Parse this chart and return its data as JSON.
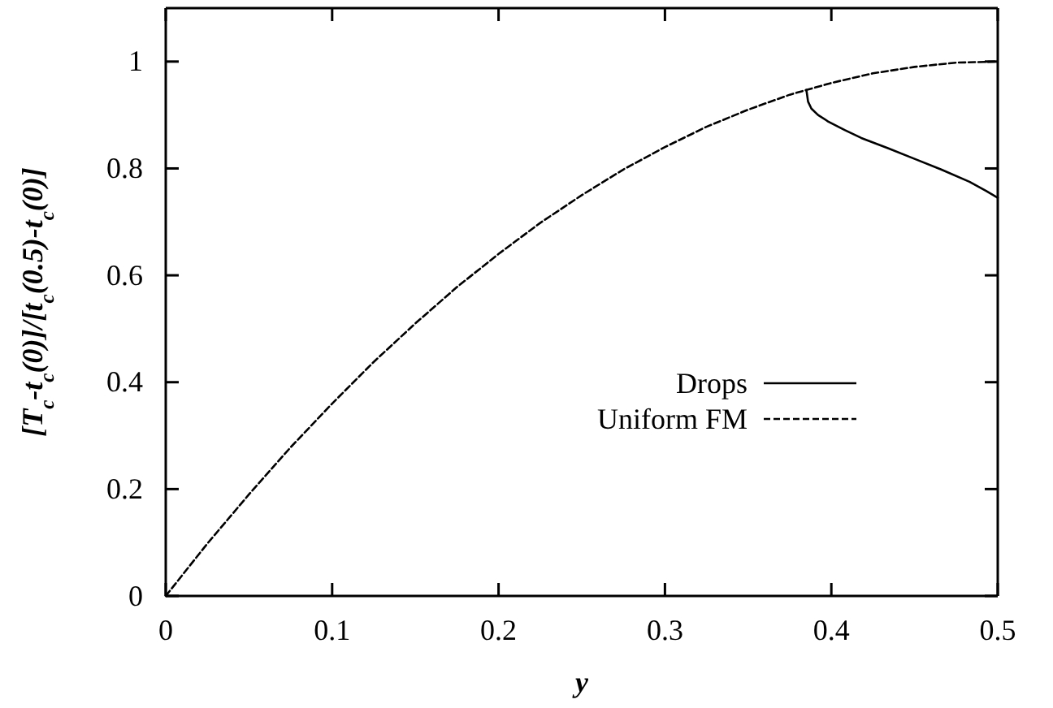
{
  "chart_data": {
    "type": "line",
    "xlabel": "y",
    "ylabel": "[T$_{c}$-t$_{c}$(0)]/[t$_{c}$(0.5)-t$_{c}$(0)]",
    "xlim": [
      0,
      0.5
    ],
    "ylim": [
      0,
      1.1
    ],
    "xticks": [
      0,
      0.1,
      0.2,
      0.3,
      0.4,
      0.5
    ],
    "yticks": [
      0,
      0.2,
      0.4,
      0.6,
      0.8,
      1
    ],
    "grid": false,
    "legend": "center",
    "series": [
      {
        "name": "Drops",
        "color": "#000000",
        "line_style": "solid",
        "x": [
          0.385,
          0.386,
          0.388,
          0.392,
          0.398,
          0.408,
          0.418,
          0.434,
          0.45,
          0.466,
          0.483,
          0.493,
          0.5
        ],
        "values": [
          0.947,
          0.925,
          0.912,
          0.9,
          0.888,
          0.872,
          0.857,
          0.838,
          0.818,
          0.798,
          0.775,
          0.758,
          0.745
        ]
      },
      {
        "name": "Uniform FM",
        "color": "#000000",
        "line_style": "dashed",
        "x": [
          0,
          0.025,
          0.05,
          0.075,
          0.1,
          0.125,
          0.15,
          0.175,
          0.2,
          0.225,
          0.25,
          0.275,
          0.3,
          0.325,
          0.35,
          0.375,
          0.4,
          0.425,
          0.45,
          0.475,
          0.5
        ],
        "values": [
          0,
          0.098,
          0.19,
          0.278,
          0.36,
          0.438,
          0.51,
          0.578,
          0.64,
          0.698,
          0.75,
          0.798,
          0.84,
          0.878,
          0.91,
          0.938,
          0.96,
          0.978,
          0.99,
          0.998,
          1
        ]
      }
    ]
  }
}
